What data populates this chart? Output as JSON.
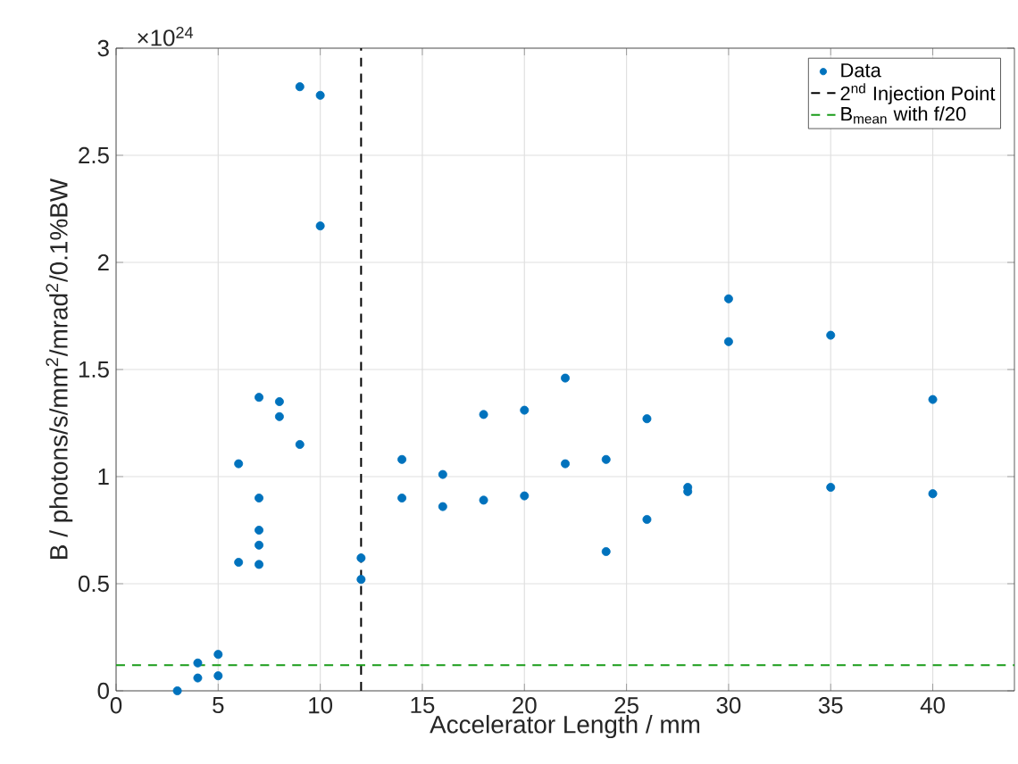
{
  "chart_data": {
    "type": "scatter",
    "xlabel": "Accelerator Length / mm",
    "ylabel": "B / photons/s/mm$^{2}$/mrad$^{2}$/0.1%BW",
    "annotations": [
      "×10$^{24}$"
    ],
    "series": [
      {
        "name": "Data",
        "color": "#0072bd",
        "x": [
          3,
          4,
          4,
          5,
          5,
          6,
          6,
          7,
          7,
          7,
          7,
          7,
          8,
          8,
          9,
          9,
          10,
          10,
          12,
          12,
          14,
          14,
          16,
          16,
          18,
          18,
          20,
          20,
          22,
          22,
          24,
          24,
          26,
          26,
          28,
          28,
          30,
          30,
          35,
          35,
          40,
          40
        ],
        "values": [
          0.0,
          0.13,
          0.06,
          0.17,
          0.07,
          1.06,
          0.6,
          1.37,
          0.9,
          0.75,
          0.68,
          0.59,
          1.35,
          1.28,
          2.82,
          1.15,
          2.78,
          2.17,
          0.62,
          0.52,
          1.08,
          0.9,
          1.01,
          0.86,
          1.29,
          0.89,
          1.31,
          0.91,
          1.46,
          1.06,
          1.08,
          0.65,
          1.27,
          0.8,
          0.95,
          0.93,
          1.83,
          1.63,
          1.66,
          0.95,
          1.36,
          0.92
        ]
      }
    ],
    "ref_lines": [
      {
        "axis": "x",
        "value": 12,
        "label": "2$^{nd}$ Injection Point",
        "color": "#000000",
        "line_style": "dashed"
      },
      {
        "axis": "y",
        "value": 0.12,
        "label": "B$_{mean}$ with f/20",
        "color": "#1a9c1a",
        "line_style": "dashed"
      }
    ],
    "xlim": [
      0,
      44
    ],
    "ylim": [
      0,
      3
    ],
    "xticks": [
      0,
      5,
      10,
      15,
      20,
      25,
      30,
      35,
      40
    ],
    "yticks": [
      0,
      0.5,
      1,
      1.5,
      2,
      2.5,
      3
    ],
    "grid": true,
    "legend": "top right",
    "marker": "circle"
  }
}
